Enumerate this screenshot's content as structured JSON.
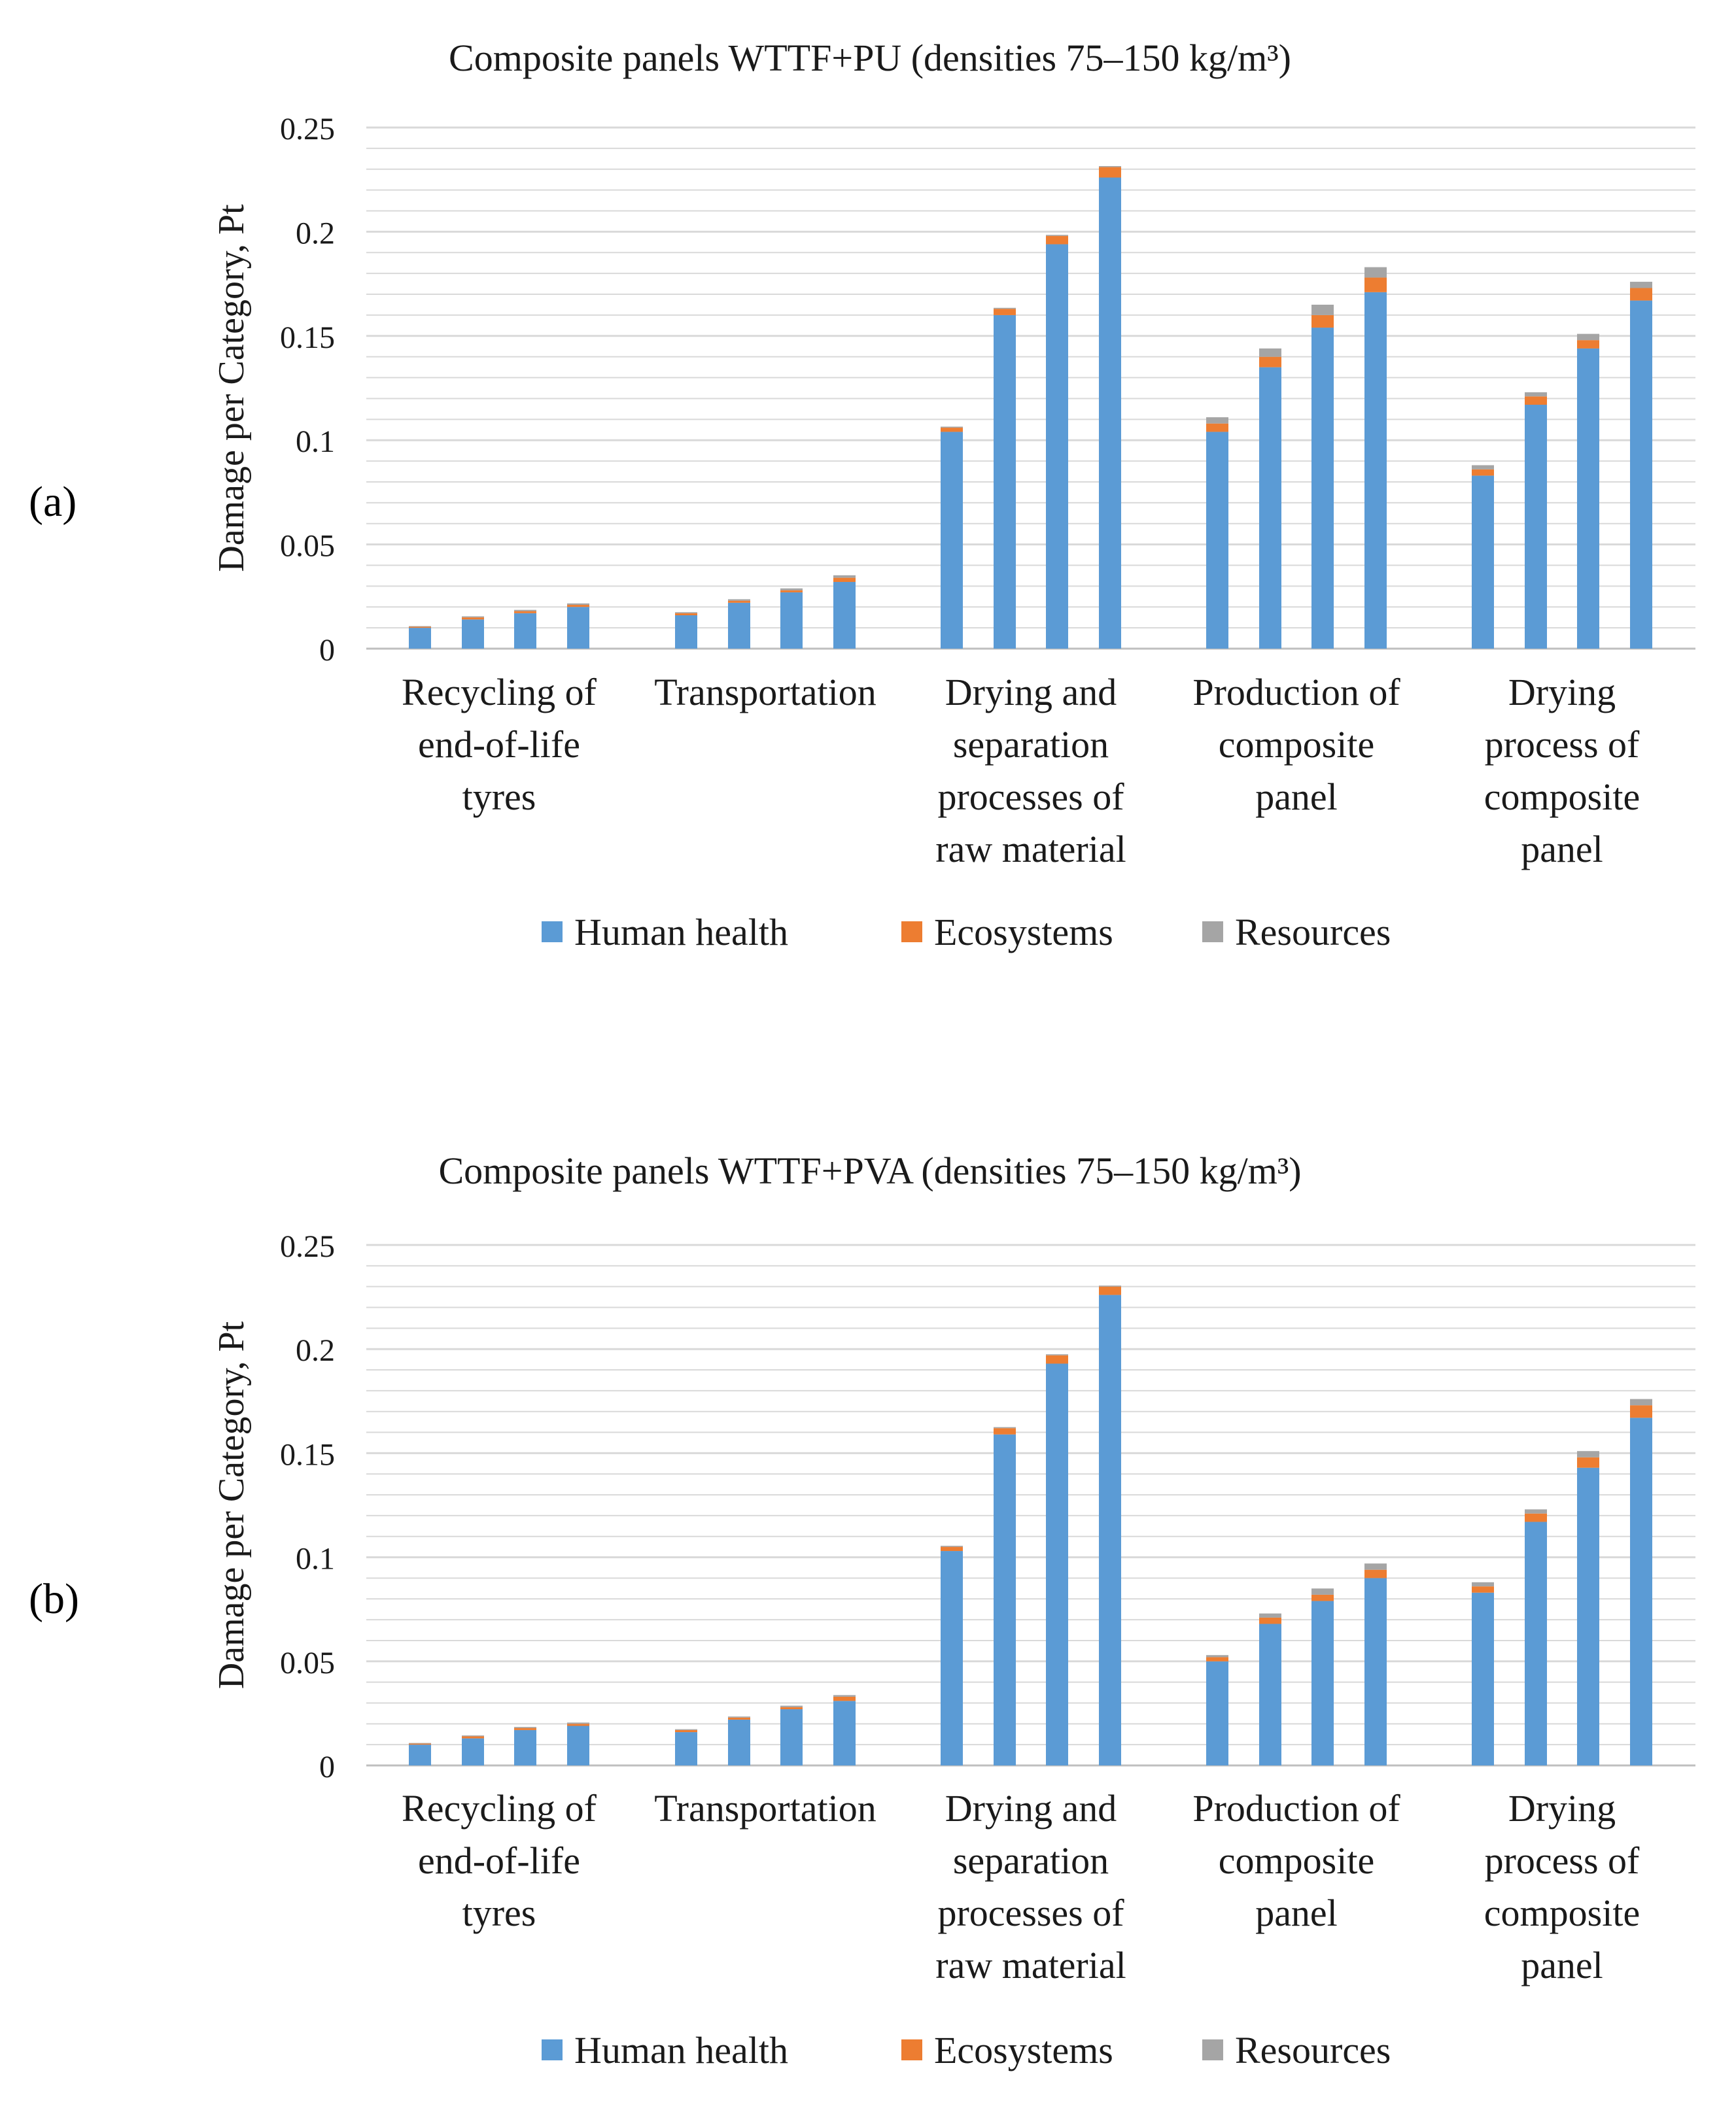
{
  "panel_labels": [
    "(a)",
    "(b)"
  ],
  "colors": {
    "human_health": "#5B9BD5",
    "ecosystems": "#ED7D31",
    "resources": "#A5A5A5",
    "grid": "#D9D9D9",
    "axis": "#BFBFBF"
  },
  "chart_data": [
    {
      "type": "bar",
      "stacked": true,
      "title": "Composite panels WTTF+PU (densities 75–150 kg/m³)",
      "ylabel": "Damage per Category, Pt",
      "xlabel": "",
      "ylim": [
        0,
        0.25
      ],
      "yticks": [
        0,
        0.05,
        0.1,
        0.15,
        0.2,
        0.25
      ],
      "ytick_labels": [
        "0",
        "0.05",
        "0.1",
        "0.15",
        "0.2",
        "0.25"
      ],
      "grid": true,
      "legend": "bottom",
      "categories": [
        [
          "Recycling of",
          "end-of-life",
          "tyres"
        ],
        [
          "Transportation"
        ],
        [
          "Drying and",
          "separation",
          "processes of",
          "raw material"
        ],
        [
          "Production of",
          "composite",
          "panel"
        ],
        [
          "Drying",
          "process of",
          "composite",
          "panel"
        ]
      ],
      "bars_per_category": 4,
      "series": [
        {
          "name": "Human health",
          "values": [
            [
              0.01,
              0.014,
              0.017,
              0.02
            ],
            [
              0.016,
              0.022,
              0.027,
              0.032
            ],
            [
              0.104,
              0.16,
              0.194,
              0.226
            ],
            [
              0.104,
              0.135,
              0.154,
              0.171
            ],
            [
              0.083,
              0.117,
              0.144,
              0.167
            ]
          ]
        },
        {
          "name": "Ecosystems",
          "values": [
            [
              0.0005,
              0.001,
              0.001,
              0.001
            ],
            [
              0.001,
              0.001,
              0.001,
              0.002
            ],
            [
              0.002,
              0.003,
              0.004,
              0.005
            ],
            [
              0.004,
              0.005,
              0.006,
              0.007
            ],
            [
              0.003,
              0.004,
              0.004,
              0.006
            ]
          ]
        },
        {
          "name": "Resources",
          "values": [
            [
              0.0003,
              0.0005,
              0.0006,
              0.0007
            ],
            [
              0.0005,
              0.0007,
              0.0009,
              0.0012
            ],
            [
              0.0005,
              0.0005,
              0.0005,
              0.0005
            ],
            [
              0.003,
              0.004,
              0.005,
              0.005
            ],
            [
              0.002,
              0.002,
              0.003,
              0.003
            ]
          ]
        }
      ]
    },
    {
      "type": "bar",
      "stacked": true,
      "title": "Composite panels WTTF+PVA (densities 75–150 kg/m³)",
      "ylabel": "Damage per Category, Pt",
      "xlabel": "",
      "ylim": [
        0,
        0.25
      ],
      "yticks": [
        0,
        0.05,
        0.1,
        0.15,
        0.2,
        0.25
      ],
      "ytick_labels": [
        "0",
        "0.05",
        "0.1",
        "0.15",
        "0.2",
        "0.25"
      ],
      "grid": true,
      "legend": "bottom",
      "categories": [
        [
          "Recycling of",
          "end-of-life",
          "tyres"
        ],
        [
          "Transportation"
        ],
        [
          "Drying and",
          "separation",
          "processes of",
          "raw material"
        ],
        [
          "Production of",
          "composite",
          "panel"
        ],
        [
          "Drying",
          "process of",
          "composite",
          "panel"
        ]
      ],
      "bars_per_category": 4,
      "series": [
        {
          "name": "Human health",
          "values": [
            [
              0.01,
              0.013,
              0.017,
              0.019
            ],
            [
              0.016,
              0.022,
              0.027,
              0.031
            ],
            [
              0.103,
              0.159,
              0.193,
              0.226
            ],
            [
              0.05,
              0.068,
              0.079,
              0.09
            ],
            [
              0.083,
              0.117,
              0.143,
              0.167
            ]
          ]
        },
        {
          "name": "Ecosystems",
          "values": [
            [
              0.0005,
              0.001,
              0.001,
              0.001
            ],
            [
              0.001,
              0.001,
              0.001,
              0.002
            ],
            [
              0.002,
              0.003,
              0.004,
              0.004
            ],
            [
              0.002,
              0.003,
              0.003,
              0.004
            ],
            [
              0.003,
              0.004,
              0.005,
              0.006
            ]
          ]
        },
        {
          "name": "Resources",
          "values": [
            [
              0.0003,
              0.0004,
              0.0005,
              0.0006
            ],
            [
              0.0004,
              0.0005,
              0.0007,
              0.0008
            ],
            [
              0.0005,
              0.0005,
              0.0005,
              0.0005
            ],
            [
              0.001,
              0.002,
              0.003,
              0.003
            ],
            [
              0.002,
              0.002,
              0.003,
              0.003
            ]
          ]
        }
      ]
    }
  ]
}
